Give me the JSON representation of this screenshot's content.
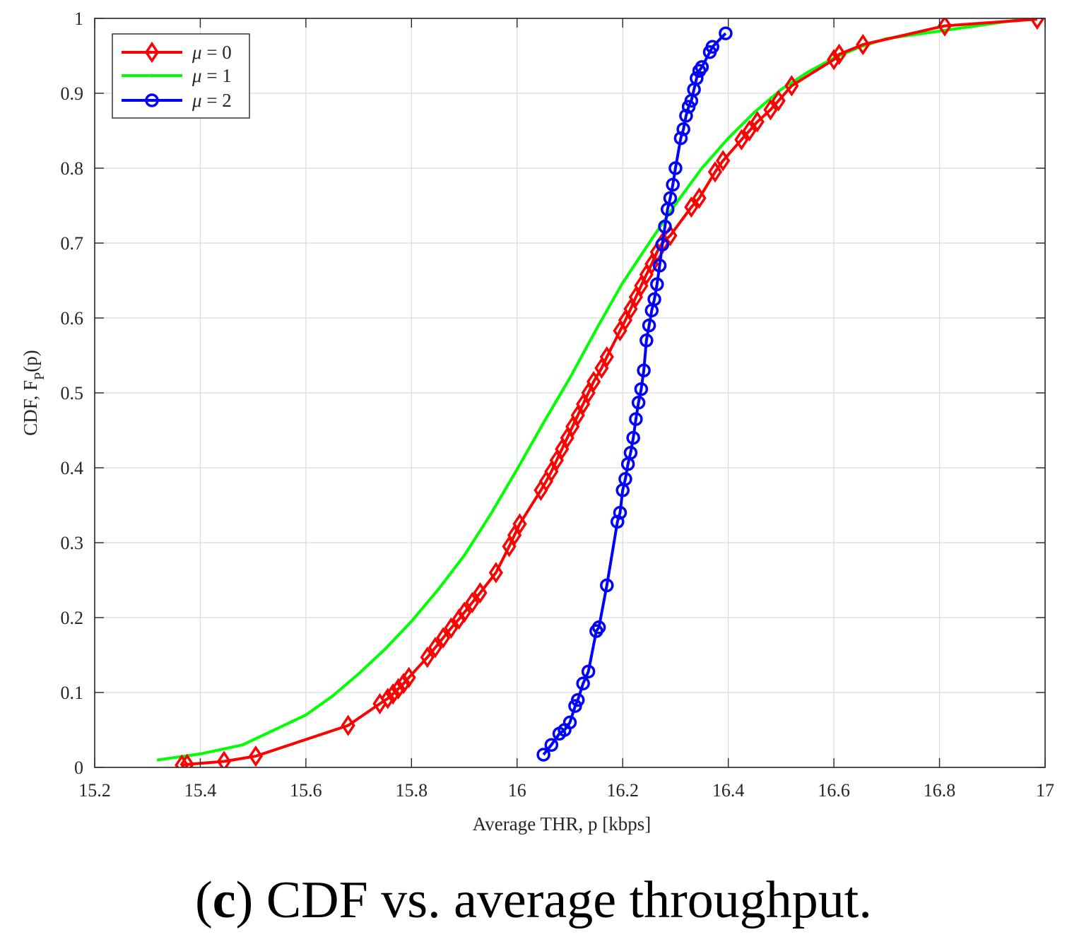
{
  "chart_data": {
    "type": "line",
    "title": "",
    "xlabel": "Average THR, p [kbps]",
    "ylabel_main": "CDF, F",
    "ylabel_sub": "P",
    "ylabel_tail": "(p)",
    "xlim": [
      15.2,
      17
    ],
    "ylim": [
      0,
      1
    ],
    "xticks": [
      15.2,
      15.4,
      15.6,
      15.8,
      16,
      16.2,
      16.4,
      16.6,
      16.8,
      17
    ],
    "xtick_labels": [
      "15.2",
      "15.4",
      "15.6",
      "15.8",
      "16",
      "16.2",
      "16.4",
      "16.6",
      "16.8",
      "17"
    ],
    "yticks": [
      0,
      0.1,
      0.2,
      0.3,
      0.4,
      0.5,
      0.6,
      0.7,
      0.8,
      0.9,
      1
    ],
    "ytick_labels": [
      "0",
      "0.1",
      "0.2",
      "0.3",
      "0.4",
      "0.5",
      "0.6",
      "0.7",
      "0.8",
      "0.9",
      "1"
    ],
    "grid": true,
    "legend_position": "top-left",
    "series": [
      {
        "name": "μ = 0",
        "legend_sym": "μ",
        "legend_val": " = 0",
        "color": "#ff0000",
        "marker": "diamond",
        "x": [
          15.365,
          15.375,
          15.445,
          15.505,
          15.68,
          15.74,
          15.755,
          15.765,
          15.775,
          15.785,
          15.795,
          15.83,
          15.845,
          15.86,
          15.875,
          15.89,
          15.9,
          15.915,
          15.93,
          15.96,
          15.985,
          15.995,
          16.005,
          16.045,
          16.055,
          16.065,
          16.075,
          16.085,
          16.095,
          16.105,
          16.115,
          16.125,
          16.135,
          16.145,
          16.16,
          16.17,
          16.195,
          16.205,
          16.215,
          16.225,
          16.235,
          16.245,
          16.255,
          16.265,
          16.275,
          16.29,
          16.33,
          16.345,
          16.375,
          16.39,
          16.425,
          16.44,
          16.455,
          16.48,
          16.495,
          16.52,
          16.6,
          16.61,
          16.655,
          16.81,
          16.985
        ],
        "y": [
          0.003,
          0.004,
          0.008,
          0.015,
          0.056,
          0.085,
          0.092,
          0.098,
          0.105,
          0.112,
          0.12,
          0.147,
          0.16,
          0.173,
          0.186,
          0.198,
          0.207,
          0.22,
          0.233,
          0.26,
          0.295,
          0.31,
          0.325,
          0.37,
          0.382,
          0.395,
          0.41,
          0.425,
          0.44,
          0.455,
          0.47,
          0.485,
          0.5,
          0.515,
          0.533,
          0.548,
          0.583,
          0.597,
          0.612,
          0.628,
          0.643,
          0.658,
          0.672,
          0.688,
          0.7,
          0.71,
          0.748,
          0.76,
          0.795,
          0.81,
          0.838,
          0.85,
          0.862,
          0.878,
          0.89,
          0.91,
          0.945,
          0.952,
          0.965,
          0.99,
          0.999
        ]
      },
      {
        "name": "μ = 1",
        "legend_sym": "μ",
        "legend_val": " = 1",
        "color": "#00ff00",
        "marker": "point",
        "x": [
          15.32,
          15.35,
          15.4,
          15.48,
          15.6,
          15.65,
          15.7,
          15.75,
          15.8,
          15.85,
          15.9,
          15.95,
          16.0,
          16.05,
          16.1,
          16.15,
          16.2,
          16.25,
          16.3,
          16.35,
          16.4,
          16.45,
          16.5,
          16.55,
          16.6,
          16.65,
          16.7,
          16.8,
          16.9,
          16.95
        ],
        "y": [
          0.01,
          0.013,
          0.018,
          0.03,
          0.07,
          0.095,
          0.125,
          0.158,
          0.195,
          0.237,
          0.283,
          0.338,
          0.398,
          0.46,
          0.52,
          0.585,
          0.647,
          0.7,
          0.752,
          0.8,
          0.84,
          0.875,
          0.905,
          0.928,
          0.947,
          0.962,
          0.973,
          0.983,
          0.993,
          0.998
        ]
      },
      {
        "name": "μ = 2",
        "legend_sym": "μ",
        "legend_val": " = 2",
        "color": "#0000ff",
        "marker": "circle",
        "x": [
          16.05,
          16.065,
          16.08,
          16.09,
          16.1,
          16.11,
          16.115,
          16.125,
          16.135,
          16.15,
          16.155,
          16.17,
          16.19,
          16.195,
          16.2,
          16.205,
          16.21,
          16.215,
          16.22,
          16.225,
          16.23,
          16.235,
          16.24,
          16.245,
          16.25,
          16.255,
          16.26,
          16.265,
          16.27,
          16.275,
          16.28,
          16.285,
          16.29,
          16.295,
          16.3,
          16.31,
          16.315,
          16.32,
          16.325,
          16.33,
          16.335,
          16.34,
          16.345,
          16.35,
          16.365,
          16.37,
          16.395
        ],
        "y": [
          0.017,
          0.03,
          0.045,
          0.05,
          0.06,
          0.082,
          0.09,
          0.112,
          0.128,
          0.182,
          0.187,
          0.243,
          0.328,
          0.34,
          0.37,
          0.385,
          0.405,
          0.42,
          0.44,
          0.465,
          0.487,
          0.505,
          0.53,
          0.57,
          0.59,
          0.61,
          0.625,
          0.645,
          0.67,
          0.698,
          0.722,
          0.745,
          0.76,
          0.778,
          0.8,
          0.84,
          0.852,
          0.87,
          0.882,
          0.89,
          0.905,
          0.92,
          0.93,
          0.935,
          0.955,
          0.962,
          0.98
        ]
      }
    ]
  },
  "caption": {
    "open": "(",
    "letter": "c",
    "close": ")",
    "text": " CDF vs. average throughput."
  }
}
